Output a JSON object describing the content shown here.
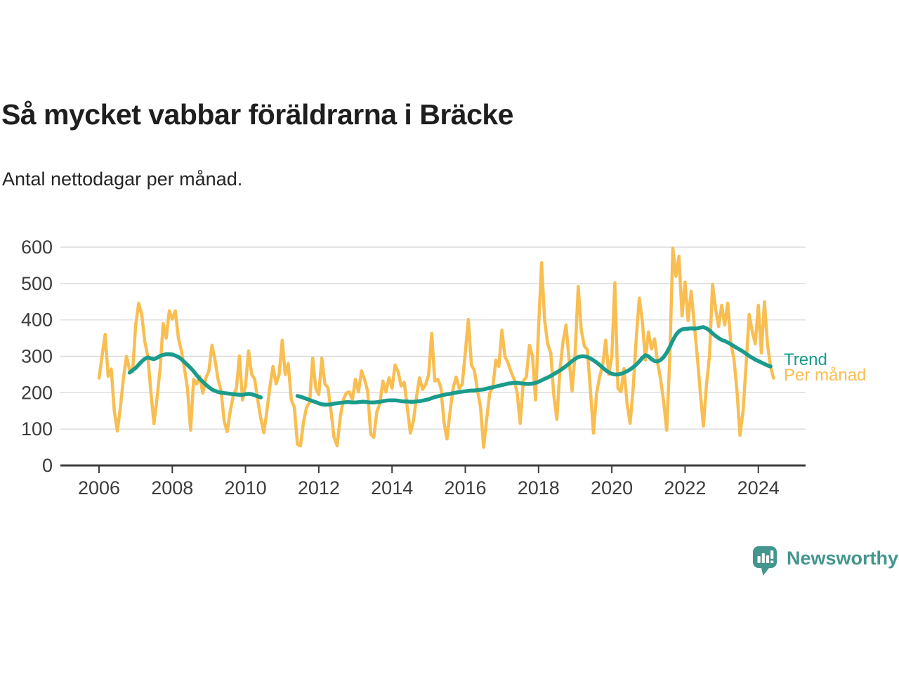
{
  "title": "Så mycket vabbar föräldrarna i Bräcke",
  "subtitle": "Antal nettodagar per månad.",
  "legend": {
    "trend_label": "Trend",
    "monthly_label": "Per månad"
  },
  "branding": {
    "name": "Newsworthy",
    "logo_icon": "speech-bubble-bar-chart-icon",
    "color": "#43968E"
  },
  "colors": {
    "monthly_line": "#F9BE51",
    "trend_line": "#1A9B8C",
    "grid": "#DBDBDB",
    "axis": "#3C3C3C",
    "title_text": "#1E1E1E"
  },
  "chart_data": {
    "type": "line",
    "title": "Så mycket vabbar föräldrarna i Bräcke",
    "subtitle": "Antal nettodagar per månad.",
    "ylabel": "",
    "xlabel": "",
    "grid": "horizontal",
    "legend_position": "right-of-line-ends",
    "y_ticks": [
      0,
      100,
      200,
      300,
      400,
      500,
      600
    ],
    "ylim": [
      0,
      620
    ],
    "x_tick_years": [
      2006,
      2008,
      2010,
      2012,
      2014,
      2016,
      2018,
      2020,
      2022,
      2024
    ],
    "x_range_note": "monthly values from 2006-01 to 2024-06",
    "series": [
      {
        "name": "Per månad",
        "color": "#F9BE51",
        "stroke_width": 4.5,
        "start": "2006-01",
        "values": [
          240,
          300,
          360,
          245,
          265,
          150,
          95,
          160,
          240,
          300,
          263,
          257,
          386,
          446,
          415,
          340,
          300,
          200,
          115,
          185,
          265,
          390,
          350,
          425,
          402,
          425,
          350,
          315,
          266,
          210,
          97,
          237,
          224,
          245,
          199,
          240,
          260,
          330,
          290,
          237,
          205,
          122,
          93,
          150,
          193,
          212,
          301,
          180,
          220,
          315,
          251,
          237,
          180,
          130,
          90,
          150,
          218,
          272,
          224,
          250,
          344,
          250,
          280,
          180,
          160,
          58,
          54,
          120,
          160,
          174,
          295,
          212,
          195,
          295,
          224,
          214,
          150,
          77,
          54,
          130,
          180,
          199,
          202,
          180,
          237,
          202,
          260,
          237,
          205,
          87,
          77,
          147,
          170,
          232,
          202,
          241,
          212,
          276,
          257,
          218,
          228,
          160,
          89,
          122,
          189,
          241,
          209,
          222,
          250,
          363,
          232,
          237,
          214,
          120,
          73,
          147,
          212,
          243,
          212,
          224,
          310,
          401,
          276,
          261,
          205,
          160,
          50,
          127,
          199,
          214,
          290,
          272,
          372,
          299,
          282,
          257,
          237,
          199,
          116,
          232,
          243,
          330,
          301,
          180,
          378,
          557,
          398,
          334,
          309,
          193,
          127,
          261,
          340,
          386,
          290,
          205,
          309,
          492,
          372,
          328,
          318,
          205,
          89,
          199,
          243,
          276,
          344,
          250,
          299,
          502,
          212,
          203,
          266,
          170,
          116,
          212,
          350,
          460,
          396,
          290,
          367,
          320,
          348,
          282,
          237,
          174,
          97,
          300,
          597,
          520,
          575,
          411,
          504,
          398,
          479,
          390,
          300,
          200,
          108,
          220,
          301,
          498,
          430,
          382,
          440,
          386,
          446,
          334,
          295,
          205,
          83,
          150,
          276,
          415,
          369,
          334,
          440,
          309,
          450,
          334,
          272,
          240
        ]
      },
      {
        "name": "Trend",
        "color": "#1A9B8C",
        "stroke_width": 5.5,
        "start": "2006-11",
        "values": [
          255,
          262,
          268,
          277,
          286,
          293,
          297,
          294,
          292,
          296,
          301,
          304,
          306,
          306,
          305,
          302,
          298,
          292,
          284,
          276,
          268,
          259,
          248,
          238,
          230,
          222,
          215,
          209,
          205,
          202,
          200,
          199,
          198,
          197,
          196,
          195,
          194,
          194,
          196,
          197,
          196,
          193,
          190,
          187,
          null,
          null,
          null,
          null,
          null,
          null,
          null,
          null,
          null,
          null,
          null,
          191,
          189,
          186,
          183,
          180,
          177,
          174,
          171,
          168,
          167,
          167,
          168,
          170,
          171,
          172,
          173,
          174,
          174,
          173,
          173,
          174,
          175,
          175,
          174,
          173,
          173,
          174,
          175,
          177,
          178,
          179,
          179,
          179,
          178,
          177,
          176,
          176,
          175,
          175,
          176,
          177,
          178,
          180,
          182,
          185,
          188,
          190,
          192,
          194,
          196,
          197,
          199,
          200,
          202,
          203,
          204,
          205,
          206,
          206,
          207,
          208,
          209,
          211,
          213,
          215,
          217,
          219,
          221,
          223,
          225,
          226,
          227,
          227,
          226,
          225,
          224,
          224,
          225,
          227,
          230,
          234,
          238,
          242,
          246,
          251,
          256,
          261,
          267,
          273,
          280,
          287,
          293,
          298,
          300,
          300,
          298,
          294,
          289,
          283,
          276,
          269,
          262,
          256,
          252,
          250,
          250,
          252,
          255,
          259,
          264,
          270,
          277,
          286,
          296,
          303,
          300,
          292,
          287,
          286,
          290,
          298,
          310,
          326,
          344,
          359,
          369,
          374,
          375,
          376,
          377,
          376,
          377,
          379,
          380,
          377,
          371,
          363,
          356,
          350,
          345,
          342,
          338,
          333,
          328,
          323,
          318,
          313,
          307,
          301,
          296,
          291,
          287,
          283,
          279,
          275,
          272
        ]
      }
    ]
  }
}
